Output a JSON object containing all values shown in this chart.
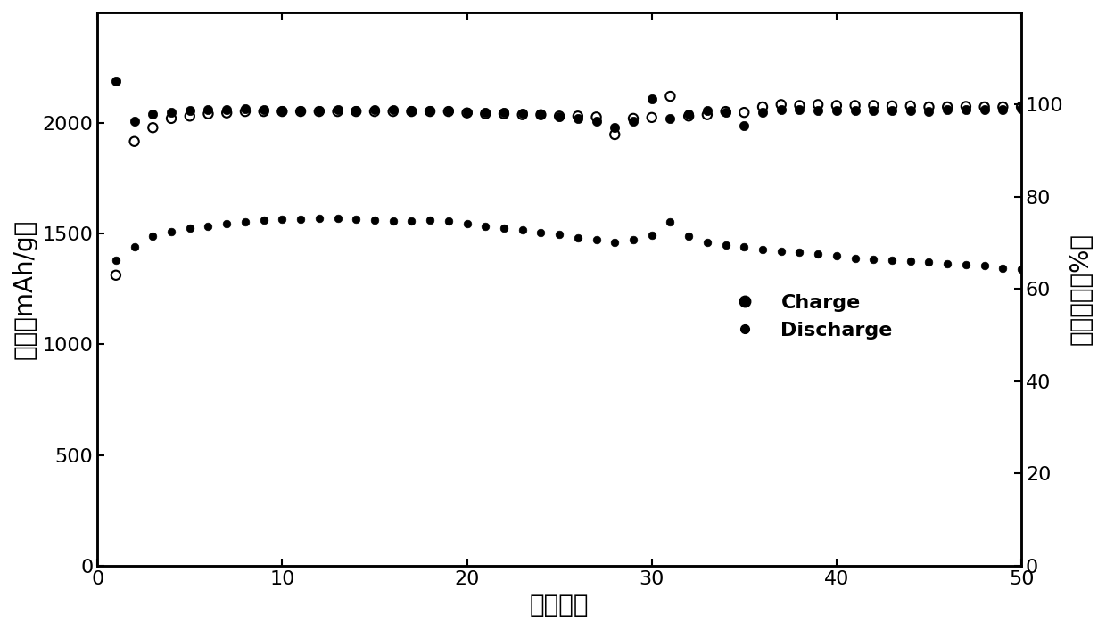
{
  "charge_x": [
    1,
    2,
    3,
    4,
    5,
    6,
    7,
    8,
    9,
    10,
    11,
    12,
    13,
    14,
    15,
    16,
    17,
    18,
    19,
    20,
    21,
    22,
    23,
    24,
    25,
    26,
    27,
    28,
    29,
    30,
    31,
    32,
    33,
    34,
    35,
    36,
    37,
    38,
    39,
    40,
    41,
    42,
    43,
    44,
    45,
    46,
    47,
    48,
    49,
    50
  ],
  "charge_y": [
    2190,
    2010,
    2040,
    2050,
    2055,
    2060,
    2060,
    2065,
    2060,
    2055,
    2055,
    2058,
    2060,
    2055,
    2060,
    2060,
    2058,
    2058,
    2055,
    2050,
    2050,
    2048,
    2045,
    2040,
    2030,
    2020,
    2010,
    1980,
    2010,
    2110,
    2020,
    2040,
    2055,
    2050,
    1990,
    2050,
    2060,
    2060,
    2058,
    2055,
    2055,
    2055,
    2055,
    2055,
    2053,
    2060,
    2060,
    2060,
    2060,
    2063
  ],
  "discharge_x": [
    1,
    2,
    3,
    4,
    5,
    6,
    7,
    8,
    9,
    10,
    11,
    12,
    13,
    14,
    15,
    16,
    17,
    18,
    19,
    20,
    21,
    22,
    23,
    24,
    25,
    26,
    27,
    28,
    29,
    30,
    31,
    32,
    33,
    34,
    35,
    36,
    37,
    38,
    39,
    40,
    41,
    42,
    43,
    44,
    45,
    46,
    47,
    48,
    49,
    50
  ],
  "discharge_y": [
    1380,
    1440,
    1490,
    1510,
    1525,
    1535,
    1545,
    1555,
    1560,
    1565,
    1565,
    1568,
    1570,
    1565,
    1562,
    1558,
    1558,
    1560,
    1558,
    1545,
    1535,
    1525,
    1515,
    1505,
    1495,
    1482,
    1472,
    1462,
    1472,
    1492,
    1555,
    1490,
    1460,
    1450,
    1440,
    1430,
    1420,
    1415,
    1410,
    1400,
    1390,
    1385,
    1380,
    1375,
    1370,
    1365,
    1360,
    1355,
    1345,
    1340
  ],
  "efficiency_x": [
    1,
    2,
    3,
    4,
    5,
    6,
    7,
    8,
    9,
    10,
    11,
    12,
    13,
    14,
    15,
    16,
    17,
    18,
    19,
    20,
    21,
    22,
    23,
    24,
    25,
    26,
    27,
    28,
    29,
    30,
    31,
    32,
    33,
    34,
    35,
    36,
    37,
    38,
    39,
    40,
    41,
    42,
    43,
    44,
    45,
    46,
    47,
    48,
    49,
    50
  ],
  "efficiency_y": [
    63.0,
    92.0,
    95.0,
    97.0,
    97.5,
    98.0,
    98.2,
    98.5,
    98.5,
    98.5,
    98.5,
    98.5,
    98.5,
    98.5,
    98.5,
    98.5,
    98.5,
    98.5,
    98.5,
    98.2,
    98.0,
    98.0,
    97.8,
    97.8,
    97.5,
    97.5,
    97.3,
    93.5,
    97.0,
    97.2,
    101.8,
    97.5,
    97.8,
    98.5,
    98.3,
    99.5,
    100.0,
    99.8,
    100.0,
    99.8,
    99.8,
    99.8,
    99.7,
    99.7,
    99.5,
    99.5,
    99.6,
    99.5,
    99.5,
    99.5
  ],
  "xlabel": "循环圈数",
  "ylabel_left": "容量（mAh/g）",
  "ylabel_right": "库伦效率（%）",
  "ylim_left": [
    0,
    2500
  ],
  "ylim_right": [
    0,
    120
  ],
  "xlim": [
    0,
    50
  ],
  "yticks_left": [
    0,
    500,
    1000,
    1500,
    2000
  ],
  "yticks_right": [
    0,
    20,
    40,
    60,
    80,
    100
  ],
  "xticks": [
    0,
    10,
    20,
    30,
    40,
    50
  ],
  "charge_label": "Charge",
  "discharge_label": "Discharge",
  "marker_size_filled": 55,
  "marker_size_open": 55,
  "font_size_label": 20,
  "font_size_tick": 16,
  "font_size_legend": 16
}
